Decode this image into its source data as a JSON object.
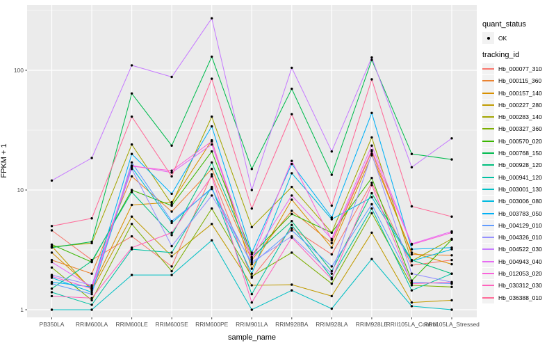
{
  "figure": {
    "background": "#FFFFFF"
  },
  "chart_data": {
    "type": "line",
    "title": "",
    "xlabel": "sample_name",
    "ylabel": "FPKM + 1",
    "y_scale": "log10",
    "y_ticks": [
      "1",
      "10",
      "100"
    ],
    "y_tick_values": [
      1,
      10,
      100
    ],
    "y_minor_values": [
      3.1623,
      31.623,
      316.23
    ],
    "ylim": [
      0.9,
      352
    ],
    "grid": true,
    "legend_position": "right",
    "panel_bg": "#EBEBEB",
    "grid_color": "#FFFFFF",
    "tick_color": "#333333",
    "tick_label_color": "#4D4D4D",
    "point_color": "#000000",
    "categories": [
      "PB350LA",
      "RRIM600LA",
      "RRIM600LE",
      "RRIM600SE",
      "RRIM600PE",
      "RRIM901LA",
      "RRIM928BA",
      "RRIM928LA",
      "RRIM928LE",
      "RRII105LA_Control",
      "RRII105LA_Stressed"
    ],
    "series": [
      {
        "name": "Hb_000077_310",
        "color": "#F8766D",
        "values": [
          4.6,
          2.6,
          4.1,
          2.3,
          13.5,
          1.85,
          4.8,
          2.9,
          11.5,
          2.35,
          2.6
        ]
      },
      {
        "name": "Hb_000115_360",
        "color": "#EA8331",
        "values": [
          2.6,
          2.0,
          13.0,
          6.6,
          15.0,
          2.6,
          6.7,
          3.6,
          21.0,
          2.9,
          2.85
        ]
      },
      {
        "name": "Hb_000157_140",
        "color": "#D89000",
        "values": [
          3.0,
          1.5,
          7.5,
          7.9,
          26.0,
          2.2,
          8.3,
          3.3,
          19.5,
          3.0,
          2.4
        ]
      },
      {
        "name": "Hb_000227_280",
        "color": "#C09B00",
        "values": [
          3.4,
          1.45,
          6.0,
          2.8,
          5.2,
          1.6,
          1.62,
          1.3,
          4.4,
          1.15,
          1.2
        ]
      },
      {
        "name": "Hb_000283_140",
        "color": "#A3A500",
        "values": [
          3.35,
          3.6,
          24.0,
          7.6,
          41.0,
          4.9,
          10.6,
          4.4,
          27.5,
          2.55,
          3.9
        ]
      },
      {
        "name": "Hb_000327_360",
        "color": "#7CAE00",
        "values": [
          2.25,
          1.2,
          5.2,
          2.1,
          7.0,
          1.9,
          3.0,
          1.65,
          6.4,
          1.6,
          1.55
        ]
      },
      {
        "name": "Hb_000570_020",
        "color": "#39B600",
        "values": [
          3.5,
          2.5,
          10.0,
          7.4,
          21.0,
          2.9,
          6.3,
          4.4,
          12.6,
          1.75,
          3.85
        ]
      },
      {
        "name": "Hb_000768_150",
        "color": "#00BB4E",
        "values": [
          3.3,
          3.7,
          64.0,
          23.5,
          130.0,
          15.0,
          70.0,
          13.4,
          122.0,
          20.0,
          18.0
        ]
      },
      {
        "name": "Hb_000928_120",
        "color": "#00BF7D",
        "values": [
          1.5,
          2.55,
          9.6,
          4.2,
          17.0,
          2.75,
          5.5,
          2.1,
          9.4,
          2.6,
          2.0
        ]
      },
      {
        "name": "Hb_000941_120",
        "color": "#00C1A3",
        "values": [
          1.4,
          1.1,
          3.2,
          3.0,
          10.6,
          1.35,
          5.1,
          1.85,
          7.0,
          1.45,
          2.0
        ]
      },
      {
        "name": "Hb_003001_130",
        "color": "#00BFC4",
        "values": [
          1.0,
          1.0,
          1.95,
          1.95,
          3.8,
          1.0,
          1.45,
          1.02,
          2.65,
          1.07,
          1.0
        ]
      },
      {
        "name": "Hb_003006_080",
        "color": "#00BAE0",
        "values": [
          1.85,
          1.4,
          15.5,
          5.3,
          10.4,
          2.0,
          13.8,
          5.7,
          8.7,
          2.55,
          3.2
        ]
      },
      {
        "name": "Hb_003783_050",
        "color": "#00B0F6",
        "values": [
          1.7,
          1.55,
          20.0,
          9.3,
          34.0,
          3.0,
          16.5,
          5.9,
          44.0,
          3.2,
          3.3
        ]
      },
      {
        "name": "Hb_004129_010",
        "color": "#619CFF",
        "values": [
          1.65,
          1.35,
          17.0,
          5.5,
          10.2,
          2.4,
          4.6,
          2.3,
          7.6,
          1.7,
          1.65
        ]
      },
      {
        "name": "Hb_004326_010",
        "color": "#9590FF",
        "values": [
          1.95,
          1.6,
          15.0,
          3.4,
          9.0,
          2.5,
          4.1,
          2.0,
          20.0,
          2.0,
          1.7
        ]
      },
      {
        "name": "Hb_004522_030",
        "color": "#C77CFF",
        "values": [
          12.0,
          18.5,
          110.0,
          88.0,
          272.0,
          10.0,
          105.0,
          21.0,
          128.0,
          15.5,
          27.0
        ]
      },
      {
        "name": "Hb_004943_040",
        "color": "#E76BF3",
        "values": [
          2.5,
          1.55,
          16.0,
          14.0,
          24.0,
          2.7,
          9.0,
          3.9,
          23.5,
          3.55,
          4.5
        ]
      },
      {
        "name": "Hb_012053_020",
        "color": "#FA62DB",
        "values": [
          1.9,
          1.5,
          15.8,
          14.5,
          25.5,
          2.65,
          17.5,
          3.8,
          21.5,
          3.5,
          4.4
        ]
      },
      {
        "name": "Hb_030312_030",
        "color": "#FF62BC",
        "values": [
          1.3,
          1.25,
          3.3,
          4.4,
          13.0,
          1.15,
          4.0,
          1.8,
          11.0,
          1.65,
          1.7
        ]
      },
      {
        "name": "Hb_036388_010",
        "color": "#FF6A98",
        "values": [
          5.0,
          5.8,
          41.0,
          13.0,
          85.0,
          7.0,
          43.0,
          7.4,
          84.0,
          7.3,
          6.0
        ]
      }
    ]
  },
  "legend": {
    "quant_status": {
      "title": "quant_status",
      "key_icon": "point-icon",
      "items": [
        {
          "label": "OK"
        }
      ]
    },
    "tracking_id": {
      "title": "tracking_id"
    }
  }
}
